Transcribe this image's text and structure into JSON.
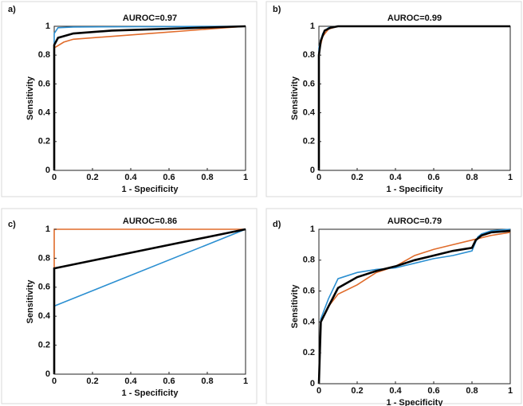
{
  "chart_data": [
    {
      "type": "line",
      "panel_label": "a)",
      "title": "AUROC=0.97",
      "xlabel": "1 - Specificity",
      "ylabel": "Sensitivity",
      "xlim": [
        0,
        1
      ],
      "ylim": [
        0,
        1
      ],
      "xticks": [
        0,
        0.2,
        0.4,
        0.6,
        0.8,
        1
      ],
      "yticks": [
        0,
        0.2,
        0.4,
        0.6,
        0.8,
        1
      ],
      "series": [
        {
          "color": "#e06b2a",
          "x": [
            0,
            0,
            0.05,
            0.1,
            0.5,
            1
          ],
          "values": [
            0,
            0.85,
            0.89,
            0.91,
            0.95,
            1
          ]
        },
        {
          "color": "#2b8fd1",
          "x": [
            0,
            0,
            0.02,
            0.1,
            1
          ],
          "values": [
            0,
            0.95,
            0.99,
            0.995,
            1
          ]
        },
        {
          "color": "#000000",
          "x": [
            0,
            0,
            0.02,
            0.1,
            0.3,
            1
          ],
          "values": [
            0,
            0.87,
            0.92,
            0.95,
            0.97,
            1
          ]
        }
      ]
    },
    {
      "type": "line",
      "panel_label": "b)",
      "title": "AUROC=0.99",
      "xlabel": "1 - Specificity",
      "ylabel": "Sensitivity",
      "xlim": [
        0,
        1
      ],
      "ylim": [
        0,
        1
      ],
      "xticks": [
        0,
        0.2,
        0.4,
        0.6,
        0.8,
        1
      ],
      "yticks": [
        0,
        0.2,
        0.4,
        0.6,
        0.8,
        1
      ],
      "series": [
        {
          "color": "#e06b2a",
          "x": [
            0,
            0,
            0.02,
            0.05,
            0.1,
            1
          ],
          "values": [
            0,
            0.82,
            0.93,
            0.98,
            1,
            1
          ]
        },
        {
          "color": "#2b8fd1",
          "x": [
            0,
            0,
            0.02,
            0.05,
            0.1,
            1
          ],
          "values": [
            0,
            0.85,
            0.95,
            0.99,
            1,
            1
          ]
        },
        {
          "color": "#000000",
          "x": [
            0,
            0,
            0.01,
            0.03,
            0.06,
            0.1,
            1
          ],
          "values": [
            0,
            0.8,
            0.9,
            0.97,
            0.99,
            1,
            1
          ]
        }
      ]
    },
    {
      "type": "line",
      "panel_label": "c)",
      "title": "AUROC=0.86",
      "xlabel": "1 - Specificity",
      "ylabel": "Sensitivity",
      "xlim": [
        0,
        1
      ],
      "ylim": [
        0,
        1
      ],
      "xticks": [
        0,
        0.2,
        0.4,
        0.6,
        0.8,
        1
      ],
      "yticks": [
        0,
        0.2,
        0.4,
        0.6,
        0.8,
        1
      ],
      "series": [
        {
          "color": "#e06b2a",
          "x": [
            0,
            0,
            1
          ],
          "values": [
            0,
            1,
            1
          ]
        },
        {
          "color": "#2b8fd1",
          "x": [
            0,
            0,
            1
          ],
          "values": [
            0,
            0.47,
            1
          ]
        },
        {
          "color": "#000000",
          "x": [
            0,
            0,
            1
          ],
          "values": [
            0,
            0.73,
            1
          ]
        }
      ]
    },
    {
      "type": "line",
      "panel_label": "d)",
      "title": "AUROC=0.79",
      "xlabel": "1 - Specificity",
      "ylabel": "Sensitivity",
      "xlim": [
        0,
        1
      ],
      "ylim": [
        0,
        1
      ],
      "xticks": [
        0,
        0.2,
        0.4,
        0.6,
        0.8,
        1
      ],
      "yticks": [
        0,
        0.2,
        0.4,
        0.6,
        0.8,
        1
      ],
      "series": [
        {
          "color": "#e06b2a",
          "x": [
            0,
            0.01,
            0.05,
            0.1,
            0.2,
            0.3,
            0.4,
            0.5,
            0.6,
            0.7,
            0.8,
            0.9,
            1
          ],
          "values": [
            0,
            0.4,
            0.5,
            0.58,
            0.64,
            0.72,
            0.76,
            0.83,
            0.87,
            0.9,
            0.93,
            0.96,
            0.98
          ]
        },
        {
          "color": "#2b8fd1",
          "x": [
            0,
            0.01,
            0.05,
            0.1,
            0.2,
            0.3,
            0.4,
            0.5,
            0.6,
            0.7,
            0.8,
            0.83,
            0.85,
            0.9,
            1
          ],
          "values": [
            0,
            0.42,
            0.55,
            0.68,
            0.72,
            0.74,
            0.75,
            0.78,
            0.81,
            0.83,
            0.86,
            0.95,
            0.97,
            0.99,
            1
          ]
        },
        {
          "color": "#000000",
          "x": [
            0,
            0.01,
            0.05,
            0.1,
            0.2,
            0.3,
            0.4,
            0.5,
            0.6,
            0.7,
            0.8,
            0.82,
            0.85,
            0.9,
            1
          ],
          "values": [
            0,
            0.4,
            0.5,
            0.62,
            0.69,
            0.73,
            0.76,
            0.8,
            0.83,
            0.86,
            0.88,
            0.93,
            0.96,
            0.98,
            0.99
          ]
        }
      ]
    }
  ]
}
